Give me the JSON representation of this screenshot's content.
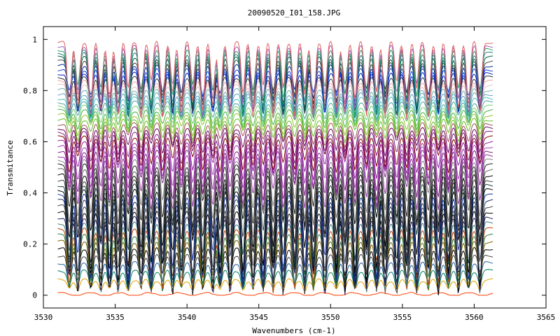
{
  "chart_data": {
    "type": "line",
    "title": "20090520_I01_158.JPG",
    "xlabel": "Wavenumbers (cm-1)",
    "ylabel": "Transmitance",
    "xlim": [
      3530,
      3565
    ],
    "ylim": [
      -0.05,
      1.05
    ],
    "x_ticks": [
      3530,
      3535,
      3540,
      3545,
      3550,
      3555,
      3560,
      3565
    ],
    "y_ticks": [
      0,
      0.2,
      0.4,
      0.6,
      0.8,
      1
    ],
    "x_tick_labels": [
      "3530",
      "3535",
      "3540",
      "3545",
      "3550",
      "3555",
      "3560",
      "3565"
    ],
    "y_tick_labels": [
      "0",
      "0.2",
      "0.4",
      "0.6",
      "0.8",
      "1"
    ],
    "x_range": [
      3531,
      3561.3
    ],
    "series_count": 50,
    "series_min_baseline": 0.005,
    "series_max_baseline": 0.99,
    "absorption_lines": [
      3531.8,
      3532.4,
      3533.3,
      3534.0,
      3534.6,
      3535.2,
      3535.9,
      3536.8,
      3537.5,
      3538.3,
      3539.0,
      3539.6,
      3540.4,
      3541.1,
      3541.8,
      3542.3,
      3543.0,
      3543.9,
      3544.6,
      3545.3,
      3546.0,
      3546.7,
      3547.5,
      3548.2,
      3548.8,
      3549.6,
      3550.4,
      3551.0,
      3551.7,
      3552.5,
      3553.2,
      3553.8,
      3554.6,
      3555.3,
      3556.0,
      3556.8,
      3557.5,
      3558.2,
      3558.9,
      3559.6,
      3560.4
    ],
    "series_colors": [
      "#ff4000",
      "#e0a000",
      "#008060",
      "#2060a0",
      "#404040",
      "#000000",
      "#806000",
      "#208040",
      "#c04000",
      "#408080",
      "#202060",
      "#000000",
      "#404040",
      "#203050",
      "#1030a0",
      "#000000",
      "#204040",
      "#404040",
      "#000000",
      "#606060",
      "#202020",
      "#808080",
      "#9030a0",
      "#7a2080",
      "#a040b0",
      "#9020a0",
      "#800000",
      "#802080",
      "#6a0060",
      "#a05050",
      "#60c020",
      "#90c030",
      "#40b040",
      "#70d070",
      "#50a0a0",
      "#40c0c0",
      "#60a0c0",
      "#70b0b0",
      "#e0c0c0",
      "#f0a0a0",
      "#303030",
      "#0020c0",
      "#1040e0",
      "#003090",
      "#404040",
      "#006040",
      "#208080",
      "#20a060",
      "#a060c0",
      "#e06060"
    ],
    "grid": false,
    "legend": "none"
  }
}
